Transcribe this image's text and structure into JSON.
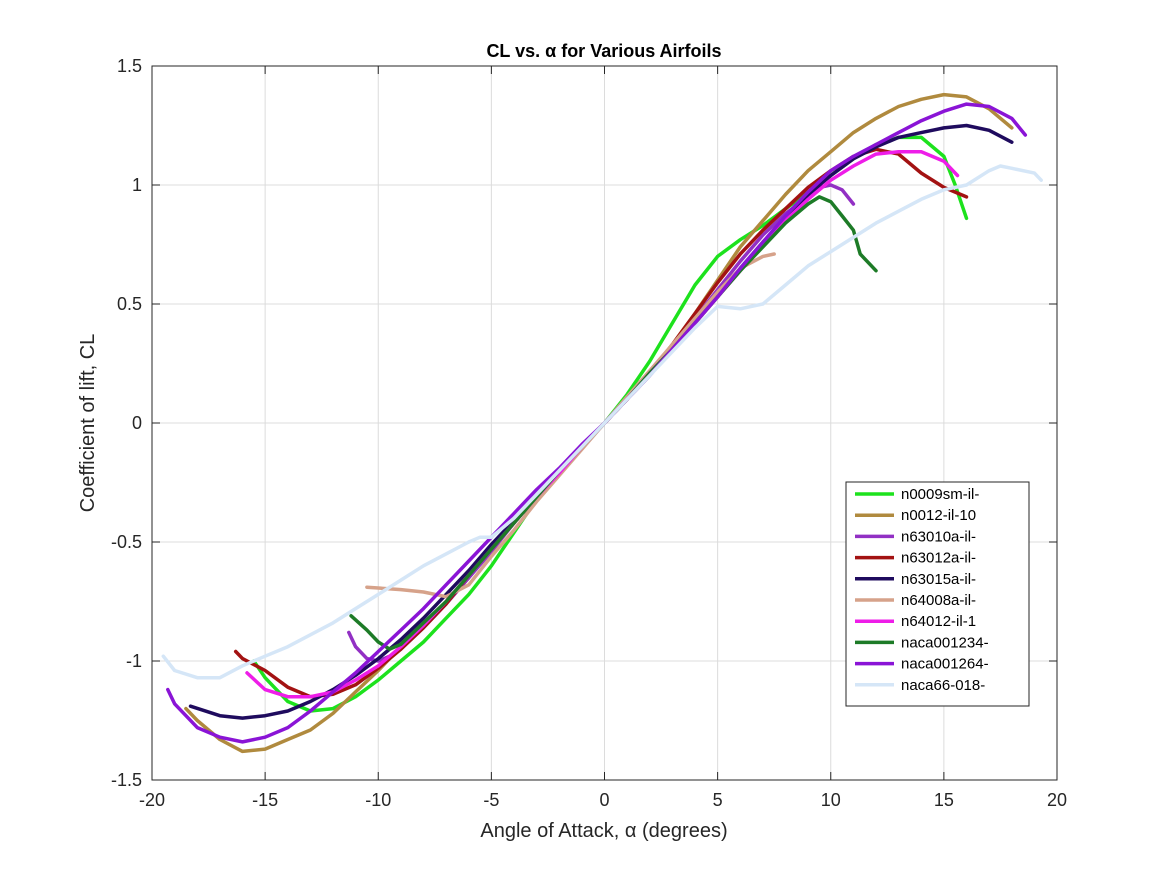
{
  "chart_data": {
    "type": "line",
    "title": "CL vs. α for Various Airfoils",
    "xlabel": "Angle of Attack, α (degrees)",
    "ylabel": "Coefficient of lift, CL",
    "xlim": [
      -20,
      20
    ],
    "ylim": [
      -1.5,
      1.5
    ],
    "xticks": [
      "-20",
      "-15",
      "-10",
      "-5",
      "0",
      "5",
      "10",
      "15",
      "20"
    ],
    "yticks": [
      "-1.5",
      "-1",
      "-0.5",
      "0",
      "0.5",
      "1",
      "1.5"
    ],
    "grid": true,
    "legend_position": "bottom-right",
    "series": [
      {
        "name": "n0009sm-il-",
        "color": "#1de21d",
        "x": [
          -15.5,
          -15,
          -14,
          -13,
          -12,
          -11,
          -10,
          -9,
          -8,
          -7,
          -6,
          -5,
          -4,
          -3,
          -2,
          -1,
          0,
          1,
          2,
          3,
          4,
          5,
          6,
          7,
          8,
          9,
          10,
          11,
          12,
          13,
          14,
          15,
          15.5,
          16
        ],
        "y": [
          -1.0,
          -1.07,
          -1.17,
          -1.21,
          -1.2,
          -1.15,
          -1.08,
          -1.0,
          -0.92,
          -0.82,
          -0.72,
          -0.6,
          -0.46,
          -0.32,
          -0.2,
          -0.1,
          0.0,
          0.12,
          0.26,
          0.42,
          0.58,
          0.7,
          0.77,
          0.83,
          0.9,
          0.97,
          1.04,
          1.11,
          1.17,
          1.2,
          1.2,
          1.12,
          1.0,
          0.86
        ]
      },
      {
        "name": "n0012-il-10",
        "color": "#b08a3e",
        "x": [
          -18.5,
          -18,
          -17,
          -16,
          -15,
          -14,
          -13,
          -12,
          -11,
          -10,
          -9,
          -8,
          -7,
          -6,
          -5,
          -4,
          -3,
          -2,
          -1,
          0,
          1,
          2,
          3,
          4,
          5,
          6,
          7,
          8,
          9,
          10,
          11,
          12,
          13,
          14,
          15,
          16,
          17,
          18
        ],
        "y": [
          -1.2,
          -1.25,
          -1.33,
          -1.38,
          -1.37,
          -1.33,
          -1.29,
          -1.22,
          -1.13,
          -1.04,
          -0.94,
          -0.85,
          -0.76,
          -0.65,
          -0.53,
          -0.42,
          -0.31,
          -0.2,
          -0.1,
          0.0,
          0.1,
          0.21,
          0.33,
          0.46,
          0.6,
          0.74,
          0.85,
          0.96,
          1.06,
          1.14,
          1.22,
          1.28,
          1.33,
          1.36,
          1.38,
          1.37,
          1.32,
          1.24
        ]
      },
      {
        "name": "n63010a-il-",
        "color": "#9230c4",
        "x": [
          -11.3,
          -11,
          -10.5,
          -10,
          -9.5,
          -9,
          -8,
          -7,
          -6,
          -5,
          -4,
          -3,
          -2,
          -1,
          0,
          1,
          2,
          3,
          4,
          5,
          6,
          7,
          8,
          9,
          9.5,
          10,
          10.5,
          11
        ],
        "y": [
          -0.88,
          -0.94,
          -0.99,
          -1.0,
          -0.98,
          -0.95,
          -0.86,
          -0.76,
          -0.65,
          -0.54,
          -0.42,
          -0.31,
          -0.2,
          -0.1,
          0.0,
          0.1,
          0.21,
          0.32,
          0.44,
          0.56,
          0.68,
          0.79,
          0.88,
          0.95,
          0.99,
          1.0,
          0.98,
          0.92
        ]
      },
      {
        "name": "n63012a-il-",
        "color": "#a31212",
        "x": [
          -16.3,
          -16,
          -15,
          -14,
          -13,
          -12,
          -11,
          -10,
          -9,
          -8,
          -7,
          -6,
          -5,
          -4,
          -3,
          -2,
          -1,
          0,
          1,
          2,
          3,
          4,
          5,
          6,
          7,
          8,
          9,
          10,
          11,
          12,
          13,
          14,
          15,
          16
        ],
        "y": [
          -0.96,
          -0.99,
          -1.04,
          -1.11,
          -1.15,
          -1.14,
          -1.1,
          -1.03,
          -0.95,
          -0.86,
          -0.76,
          -0.64,
          -0.53,
          -0.42,
          -0.31,
          -0.2,
          -0.1,
          0.0,
          0.1,
          0.21,
          0.33,
          0.46,
          0.59,
          0.71,
          0.81,
          0.9,
          0.99,
          1.06,
          1.12,
          1.15,
          1.13,
          1.05,
          0.99,
          0.95
        ]
      },
      {
        "name": "n63015a-il-",
        "color": "#1f0b5e",
        "x": [
          -18.3,
          -17,
          -16,
          -15,
          -14,
          -13,
          -12,
          -11,
          -10,
          -9,
          -8,
          -7,
          -6,
          -5,
          -4,
          -3,
          -2,
          -1,
          0,
          1,
          2,
          3,
          4,
          5,
          6,
          7,
          8,
          9,
          10,
          11,
          12,
          13,
          14,
          15,
          16,
          17,
          18
        ],
        "y": [
          -1.19,
          -1.23,
          -1.24,
          -1.23,
          -1.21,
          -1.17,
          -1.12,
          -1.06,
          -0.99,
          -0.91,
          -0.82,
          -0.72,
          -0.62,
          -0.51,
          -0.41,
          -0.3,
          -0.2,
          -0.1,
          0.0,
          0.1,
          0.2,
          0.31,
          0.42,
          0.53,
          0.65,
          0.76,
          0.86,
          0.96,
          1.04,
          1.11,
          1.16,
          1.2,
          1.22,
          1.24,
          1.25,
          1.23,
          1.18
        ]
      },
      {
        "name": "n64008a-il-",
        "color": "#d6a28a",
        "x": [
          -10.5,
          -9,
          -8,
          -7,
          -6,
          -5,
          -4,
          -3,
          -2,
          -1,
          0,
          1,
          2,
          3,
          4,
          5,
          6,
          7,
          7.5
        ],
        "y": [
          -0.69,
          -0.7,
          -0.71,
          -0.73,
          -0.68,
          -0.56,
          -0.45,
          -0.33,
          -0.22,
          -0.11,
          0.0,
          0.11,
          0.22,
          0.33,
          0.44,
          0.55,
          0.65,
          0.7,
          0.71
        ]
      },
      {
        "name": "n64012-il-1",
        "color": "#ee1de8",
        "x": [
          -15.8,
          -15,
          -14,
          -13,
          -12,
          -11,
          -10,
          -9,
          -8,
          -7,
          -6,
          -5,
          -4,
          -3,
          -2,
          -1,
          0,
          1,
          2,
          3,
          4,
          5,
          6,
          7,
          8,
          9,
          10,
          11,
          12,
          13,
          14,
          15,
          15.6
        ],
        "y": [
          -1.05,
          -1.12,
          -1.15,
          -1.15,
          -1.13,
          -1.08,
          -1.02,
          -0.94,
          -0.85,
          -0.75,
          -0.64,
          -0.53,
          -0.42,
          -0.31,
          -0.21,
          -0.1,
          0.0,
          0.1,
          0.21,
          0.31,
          0.42,
          0.53,
          0.64,
          0.75,
          0.85,
          0.94,
          1.02,
          1.08,
          1.13,
          1.14,
          1.14,
          1.1,
          1.04
        ]
      },
      {
        "name": "naca001234-",
        "color": "#1d7b27",
        "x": [
          -11.2,
          -10.5,
          -10,
          -9.5,
          -9,
          -8,
          -7,
          -6,
          -5,
          -4,
          -3,
          -2,
          -1,
          0,
          1,
          2,
          3,
          4,
          5,
          6,
          7,
          8,
          9,
          9.5,
          10,
          10.5,
          11,
          11.3,
          12
        ],
        "y": [
          -0.81,
          -0.87,
          -0.92,
          -0.95,
          -0.93,
          -0.84,
          -0.75,
          -0.64,
          -0.53,
          -0.42,
          -0.31,
          -0.2,
          -0.1,
          0.0,
          0.1,
          0.21,
          0.31,
          0.42,
          0.53,
          0.64,
          0.74,
          0.84,
          0.92,
          0.95,
          0.93,
          0.87,
          0.81,
          0.71,
          0.64
        ]
      },
      {
        "name": "naca001264-",
        "color": "#8a14d6",
        "x": [
          -19.3,
          -19,
          -18,
          -17,
          -16,
          -15,
          -14,
          -13,
          -12,
          -11,
          -10,
          -9,
          -8,
          -7,
          -6,
          -5,
          -4,
          -3,
          -2,
          -1,
          0,
          1,
          2,
          3,
          4,
          5,
          6,
          7,
          8,
          9,
          10,
          11,
          12,
          13,
          14,
          15,
          16,
          17,
          18,
          18.6
        ],
        "y": [
          -1.12,
          -1.18,
          -1.28,
          -1.32,
          -1.34,
          -1.32,
          -1.28,
          -1.21,
          -1.13,
          -1.05,
          -0.96,
          -0.87,
          -0.78,
          -0.68,
          -0.58,
          -0.48,
          -0.38,
          -0.28,
          -0.19,
          -0.09,
          0.0,
          0.1,
          0.2,
          0.31,
          0.42,
          0.53,
          0.65,
          0.76,
          0.87,
          0.97,
          1.06,
          1.12,
          1.17,
          1.22,
          1.27,
          1.31,
          1.34,
          1.33,
          1.28,
          1.21
        ]
      },
      {
        "name": "naca66-018-",
        "color": "#d5e6f7",
        "x": [
          -19.5,
          -19,
          -18,
          -17,
          -16,
          -15,
          -14,
          -13,
          -12,
          -11,
          -10,
          -9,
          -8,
          -7,
          -6,
          -5.5,
          -5,
          -4,
          -3,
          -2,
          -1,
          0,
          1,
          2,
          3,
          4,
          5,
          6,
          7,
          8,
          9,
          10,
          11,
          12,
          13,
          14,
          15,
          16,
          17,
          17.5,
          18,
          19,
          19.3
        ],
        "y": [
          -0.98,
          -1.04,
          -1.07,
          -1.07,
          -1.02,
          -0.98,
          -0.94,
          -0.89,
          -0.84,
          -0.78,
          -0.72,
          -0.66,
          -0.6,
          -0.55,
          -0.5,
          -0.48,
          -0.48,
          -0.4,
          -0.3,
          -0.2,
          -0.1,
          0.0,
          0.1,
          0.2,
          0.3,
          0.4,
          0.49,
          0.48,
          0.5,
          0.58,
          0.66,
          0.72,
          0.78,
          0.84,
          0.89,
          0.94,
          0.98,
          1.0,
          1.06,
          1.08,
          1.07,
          1.05,
          1.02
        ]
      }
    ]
  }
}
